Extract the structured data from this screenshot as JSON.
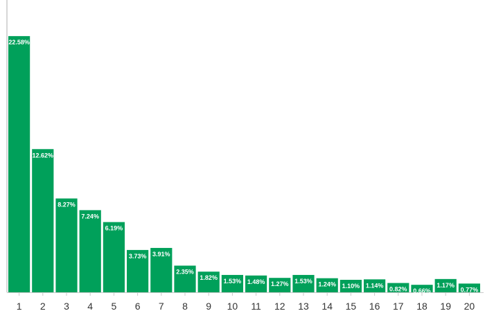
{
  "chart_data": {
    "type": "bar",
    "title": "",
    "xlabel": "",
    "ylabel": "",
    "categories": [
      "1",
      "2",
      "3",
      "4",
      "5",
      "6",
      "7",
      "8",
      "9",
      "10",
      "11",
      "12",
      "13",
      "14",
      "15",
      "16",
      "17",
      "18",
      "19",
      "20"
    ],
    "values": [
      22.58,
      12.62,
      8.27,
      7.24,
      6.19,
      3.73,
      3.91,
      2.35,
      1.82,
      1.53,
      1.48,
      1.27,
      1.53,
      1.24,
      1.1,
      1.14,
      0.82,
      0.66,
      1.17,
      0.77
    ],
    "data_labels": [
      "22.58%",
      "12.62%",
      "8.27%",
      "7.24%",
      "6.19%",
      "3.73%",
      "3.91%",
      "2.35%",
      "1.82%",
      "1.53%",
      "1.48%",
      "1.27%",
      "1.53%",
      "1.24%",
      "1.10%",
      "1.14%",
      "0.82%",
      "0.66%",
      "1.17%",
      "0.77%"
    ],
    "ylim": [
      0,
      25
    ],
    "grid": false,
    "legend": "none",
    "bar_color": "#00a05a",
    "axis_color": "#c8c8c8"
  }
}
